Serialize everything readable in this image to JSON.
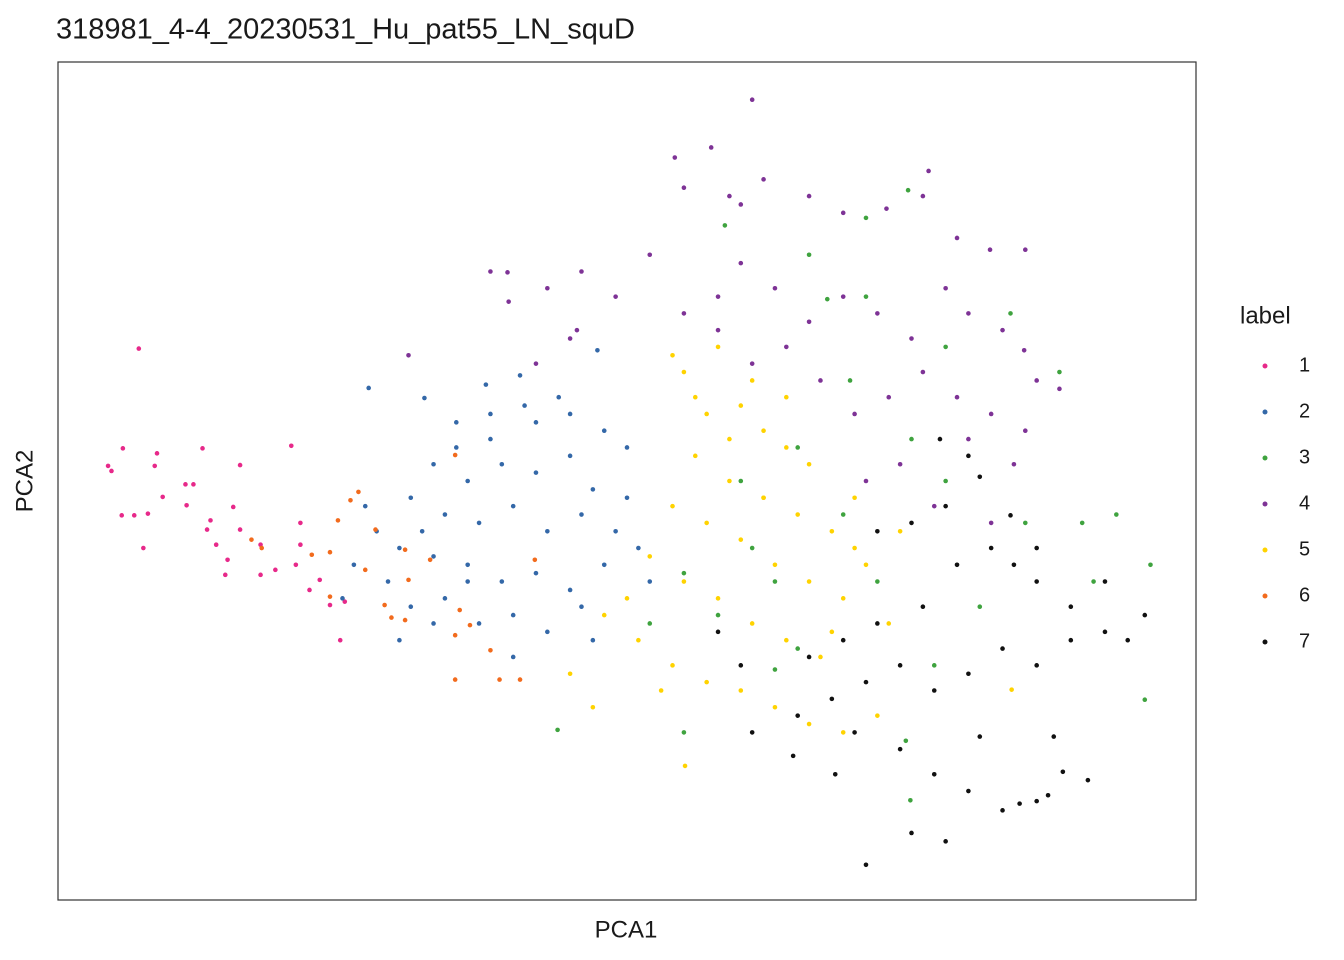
{
  "chart_data": {
    "type": "scatter",
    "title": "318981_4-4_20230531_Hu_pat55_LN_squD",
    "xlabel": "PCA1",
    "ylabel": "PCA2",
    "legend_title": "label",
    "xlim": [
      0,
      100
    ],
    "ylim": [
      0,
      100
    ],
    "series": [
      {
        "name": "1",
        "color": "#e7298a",
        "x": [
          7.1,
          4.4,
          4.7,
          5.7,
          8.7,
          8.5,
          12.7,
          16,
          20.5,
          11.2,
          11.9,
          5.6,
          6.7,
          7.9,
          7.5,
          9.2,
          11.3,
          13.4,
          13.9,
          14.9,
          15.4,
          16,
          17.8,
          19.1,
          20.9,
          21.3,
          22.1,
          23.9,
          24.8,
          23,
          17.8,
          14.7,
          13.1,
          25.2,
          21.3
        ],
        "values": [
          65.8,
          51.8,
          51.2,
          53.9,
          53.3,
          51.8,
          53.9,
          51.9,
          54.2,
          49.6,
          49.6,
          45.9,
          45.9,
          46.1,
          42,
          48.1,
          47.1,
          45.3,
          42.4,
          40.6,
          46.9,
          44.2,
          38.8,
          39.4,
          40,
          45,
          37,
          35.2,
          31,
          38.2,
          42.4,
          38.8,
          44.2,
          35.6,
          42.4
        ]
      },
      {
        "name": "2",
        "color": "#3468a8",
        "x": [
          27.3,
          47.4,
          32.2,
          37.6,
          40.6,
          35,
          38,
          42,
          45,
          48,
          50,
          33,
          36,
          39,
          42,
          45,
          47,
          31,
          34,
          37,
          40,
          43,
          46,
          49,
          28,
          30,
          33,
          36,
          39,
          42,
          45,
          48,
          51,
          29,
          31,
          34,
          37,
          40,
          43,
          46,
          26,
          25,
          27,
          44,
          41,
          38,
          35,
          32,
          50,
          52,
          47,
          40,
          36,
          33,
          30
        ],
        "values": [
          61.1,
          65.6,
          59.9,
          61.5,
          62.6,
          57,
          55,
          57,
          58,
          56,
          54,
          52,
          50,
          52,
          51,
          53,
          49,
          48,
          46,
          45,
          47,
          44,
          46,
          44,
          44,
          42,
          41,
          40,
          38,
          39,
          37,
          40,
          42,
          38,
          35,
          36,
          33,
          34,
          32,
          35,
          40,
          36,
          47,
          60,
          59,
          58,
          54,
          44,
          48,
          38,
          31,
          29,
          38,
          33,
          31
        ]
      },
      {
        "name": "3",
        "color": "#3fa33f",
        "x": [
          58.6,
          74.7,
          71,
          78,
          67.6,
          69.6,
          83.7,
          88,
          75,
          78,
          69,
          61,
          63,
          55,
          52,
          58,
          65,
          72,
          77,
          81,
          85,
          90,
          93,
          96,
          91,
          74.9,
          74.5,
          55,
          63,
          43.9,
          95.5,
          60,
          65,
          71,
          66
        ],
        "values": [
          80.5,
          84.7,
          81.4,
          66,
          71.7,
          62,
          70,
          63,
          55,
          50,
          46,
          42,
          38,
          39,
          33,
          34,
          30,
          38,
          28,
          35,
          45,
          45,
          46,
          40,
          38,
          11.9,
          19,
          20,
          27.5,
          20.3,
          23.9,
          50,
          54,
          72,
          77
        ]
      },
      {
        "name": "4",
        "color": "#7e3396",
        "x": [
          61,
          54.2,
          57.4,
          55,
          59,
          60,
          62,
          66,
          69,
          72.8,
          76,
          76.5,
          79,
          81.9,
          85,
          39.5,
          39.6,
          43,
          46,
          49,
          52,
          55,
          58,
          60,
          63,
          66,
          69,
          72,
          75,
          78,
          80,
          83,
          86,
          84.9,
          88,
          85,
          82,
          79,
          76,
          73,
          70,
          67,
          64,
          61,
          58,
          45,
          42,
          45.6,
          30.8,
          38,
          84,
          80,
          74,
          71,
          77,
          82
        ],
        "values": [
          95.5,
          88.6,
          89.8,
          85,
          84,
          83,
          86,
          84,
          82,
          82.5,
          84,
          87,
          79,
          77.6,
          77.6,
          74.9,
          71.4,
          73,
          75,
          72,
          77,
          70,
          68,
          76,
          73,
          69,
          72,
          70,
          67,
          73,
          70,
          68,
          62,
          65.6,
          61,
          56,
          58,
          60,
          63,
          60,
          58,
          62,
          66,
          64,
          72,
          67,
          64,
          68,
          65,
          75,
          52,
          55,
          52,
          50,
          47,
          45
        ]
      },
      {
        "name": "5",
        "color": "#ffd300",
        "x": [
          54,
          55,
          58,
          57,
          60,
          62,
          64,
          66,
          56,
          59,
          62,
          65,
          68,
          70,
          54,
          57,
          60,
          63,
          66,
          69,
          52,
          55,
          58,
          61,
          64,
          67,
          48,
          51,
          54,
          57,
          60,
          63,
          66,
          69,
          72,
          74,
          71,
          68,
          73,
          45,
          53,
          47,
          55.1,
          62,
          59,
          64,
          61,
          56,
          50,
          83.8,
          70
        ],
        "values": [
          65,
          63,
          66,
          58,
          59,
          56,
          54,
          52,
          53,
          50,
          48,
          46,
          44,
          42,
          47,
          45,
          43,
          40,
          38,
          36,
          41,
          38,
          36,
          33,
          31,
          29,
          34,
          31,
          28,
          26,
          25,
          23,
          21,
          20,
          22,
          44,
          40,
          32,
          33,
          27,
          25,
          23,
          16,
          48,
          55,
          60,
          62,
          60,
          36,
          25.1,
          48
        ]
      },
      {
        "name": "6",
        "color": "#f26b1d",
        "x": [
          17,
          17.9,
          22.3,
          23.9,
          24.6,
          26.4,
          25.7,
          27.9,
          28.7,
          29.3,
          30.5,
          30.8,
          30.5,
          32.7,
          34.9,
          35.3,
          36.2,
          34.9,
          38,
          38.8,
          40.6,
          34.9,
          41.9,
          23.9,
          27
        ],
        "values": [
          43,
          42,
          41.2,
          41.5,
          45.3,
          48.7,
          47.7,
          44.2,
          35.2,
          33.7,
          33.4,
          38.2,
          41.8,
          40.6,
          53.1,
          34.6,
          32.8,
          31.6,
          29.8,
          26.3,
          26.3,
          26.3,
          40.6,
          36.2,
          39.4
        ]
      },
      {
        "name": "7",
        "color": "#111111",
        "x": [
          71,
          78,
          75,
          83,
          84.5,
          86,
          87,
          90.5,
          88.3,
          81,
          87.5,
          68.3,
          64.6,
          61,
          65,
          68,
          71,
          74,
          77,
          80,
          83,
          86,
          89,
          92,
          94,
          95.5,
          92,
          89,
          86,
          82,
          79,
          76,
          72,
          69,
          66,
          72,
          75,
          78,
          81,
          77.5,
          80,
          83.7,
          86,
          84,
          70,
          74,
          77,
          80,
          58,
          60
        ],
        "values": [
          4.2,
          7,
          8,
          10.7,
          11.5,
          11.8,
          12.5,
          14.3,
          15.3,
          19.5,
          19.5,
          15,
          17.2,
          20,
          22,
          24,
          26,
          28,
          25,
          27,
          30,
          28,
          31,
          32,
          31,
          34,
          38,
          35,
          38,
          42,
          40,
          35,
          33,
          31,
          29,
          44,
          45,
          47,
          50.5,
          55,
          53,
          45.9,
          42,
          40,
          20,
          18,
          15,
          13,
          32,
          28
        ]
      }
    ]
  }
}
